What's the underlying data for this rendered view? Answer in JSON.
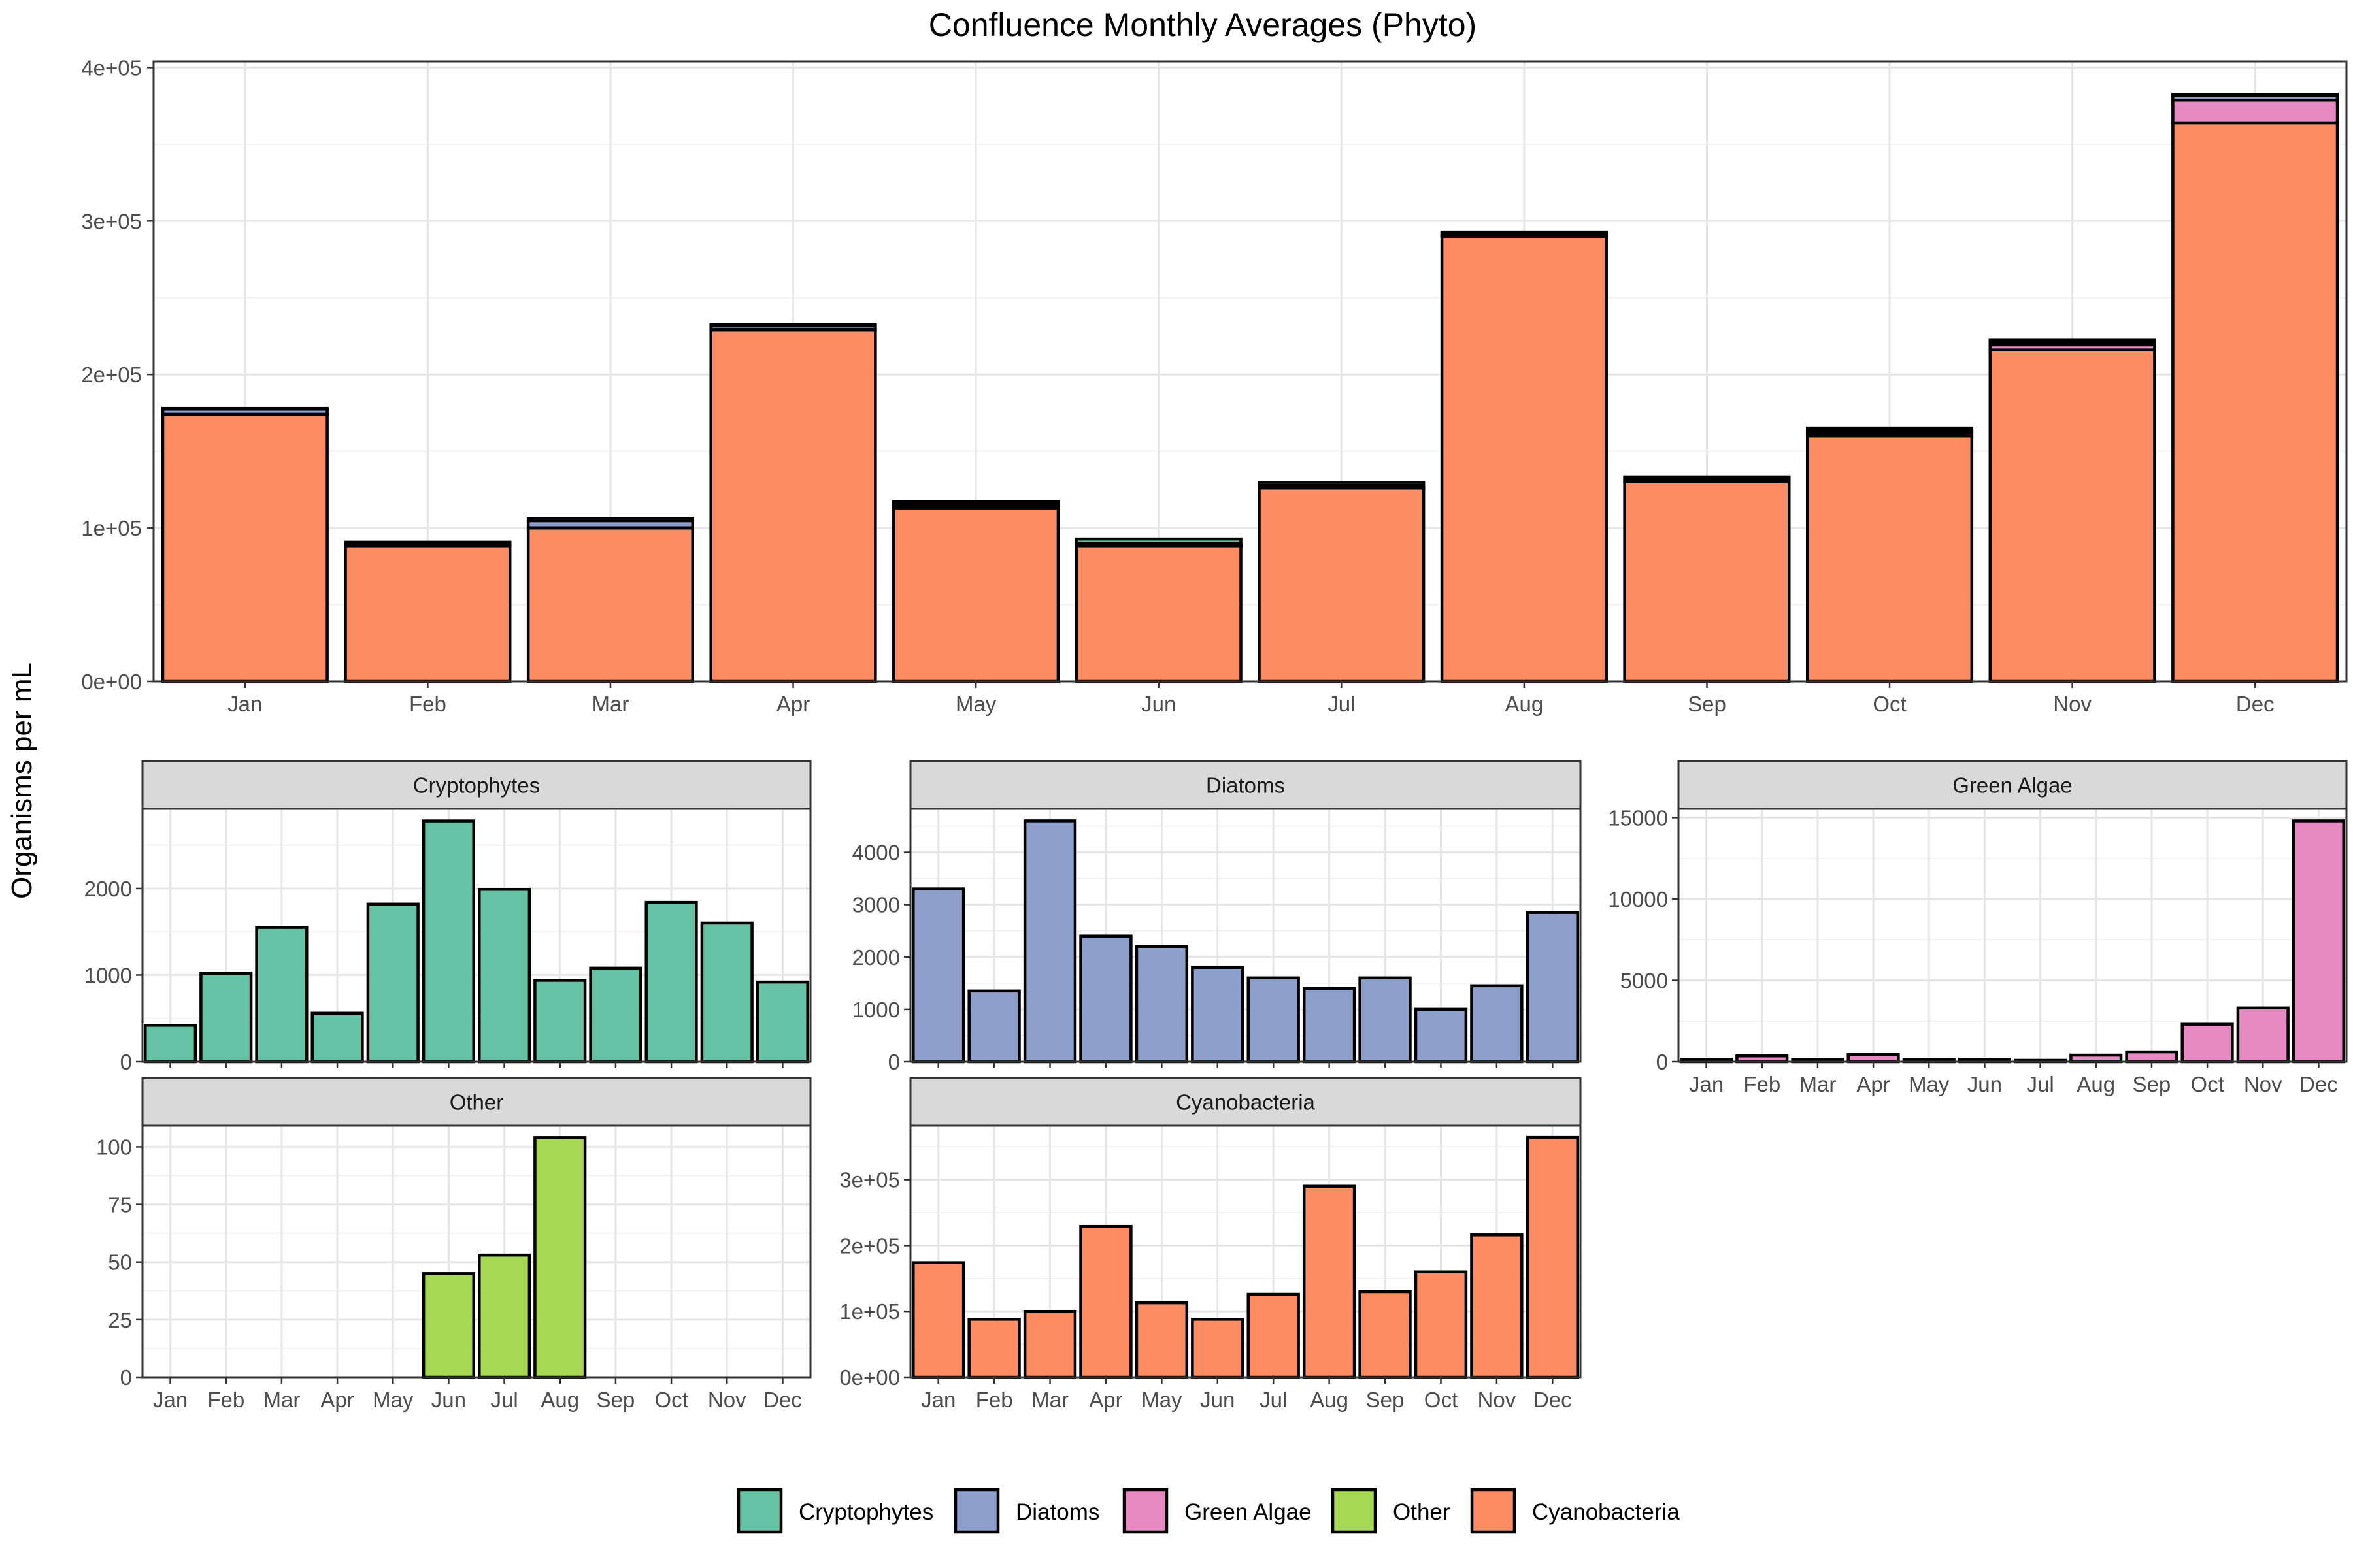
{
  "title": "Confluence Monthly Averages (Phyto)",
  "ylabel": "Organisms per mL",
  "months": [
    "Jan",
    "Feb",
    "Mar",
    "Apr",
    "May",
    "Jun",
    "Jul",
    "Aug",
    "Sep",
    "Oct",
    "Nov",
    "Dec"
  ],
  "colors": {
    "Cryptophytes": "#66c2a5",
    "Diatoms": "#8da0cb",
    "Green Algae": "#e78ac3",
    "Other": "#a6d854",
    "Cyanobacteria": "#fc8d62"
  },
  "legend": {
    "entries": [
      "Cryptophytes",
      "Diatoms",
      "Green Algae",
      "Other",
      "Cyanobacteria"
    ],
    "placement": "bottom"
  },
  "chart_data": [
    {
      "type": "bar",
      "stacked": true,
      "title": "Confluence Monthly Averages (Phyto)",
      "ylabel": "Organisms per mL",
      "categories": [
        "Jan",
        "Feb",
        "Mar",
        "Apr",
        "May",
        "Jun",
        "Jul",
        "Aug",
        "Sep",
        "Oct",
        "Nov",
        "Dec"
      ],
      "ylim": [
        0,
        400000
      ],
      "yticks": [
        0,
        100000,
        200000,
        300000,
        400000
      ],
      "ytick_labels": [
        "0e+00",
        "1e+05",
        "2e+05",
        "3e+05",
        "4e+05"
      ],
      "grid": true,
      "series": [
        {
          "name": "Cyanobacteria",
          "values": [
            174000,
            88000,
            100000,
            229000,
            113000,
            88000,
            126000,
            290000,
            130000,
            160000,
            216000,
            364000
          ]
        },
        {
          "name": "Other",
          "values": [
            0,
            0,
            0,
            0,
            0,
            45,
            53,
            104,
            0,
            0,
            0,
            0
          ]
        },
        {
          "name": "Green Algae",
          "values": [
            150,
            350,
            150,
            450,
            150,
            150,
            80,
            400,
            600,
            2300,
            3300,
            14800
          ]
        },
        {
          "name": "Diatoms",
          "values": [
            3300,
            1350,
            4600,
            2400,
            2200,
            1800,
            1600,
            1400,
            1600,
            1000,
            1450,
            2850
          ]
        },
        {
          "name": "Cryptophytes",
          "values": [
            420,
            1020,
            1550,
            560,
            1820,
            2780,
            1990,
            940,
            1080,
            1840,
            1600,
            920
          ]
        }
      ]
    },
    {
      "type": "bar",
      "panel": "Cryptophytes",
      "categories": [
        "Jan",
        "Feb",
        "Mar",
        "Apr",
        "May",
        "Jun",
        "Jul",
        "Aug",
        "Sep",
        "Oct",
        "Nov",
        "Dec"
      ],
      "values": [
        420,
        1020,
        1550,
        560,
        1820,
        2780,
        1990,
        940,
        1080,
        1840,
        1600,
        920
      ],
      "ylim": [
        0,
        2920
      ],
      "yticks": [
        0,
        1000,
        2000
      ],
      "ytick_labels": [
        "0",
        "1000",
        "2000"
      ]
    },
    {
      "type": "bar",
      "panel": "Diatoms",
      "categories": [
        "Jan",
        "Feb",
        "Mar",
        "Apr",
        "May",
        "Jun",
        "Jul",
        "Aug",
        "Sep",
        "Oct",
        "Nov",
        "Dec"
      ],
      "values": [
        3300,
        1350,
        4600,
        2400,
        2200,
        1800,
        1600,
        1400,
        1600,
        1000,
        1450,
        2850
      ],
      "ylim": [
        0,
        4830
      ],
      "yticks": [
        0,
        1000,
        2000,
        3000,
        4000
      ],
      "ytick_labels": [
        "0",
        "1000",
        "2000",
        "3000",
        "4000"
      ]
    },
    {
      "type": "bar",
      "panel": "Green Algae",
      "categories": [
        "Jan",
        "Feb",
        "Mar",
        "Apr",
        "May",
        "Jun",
        "Jul",
        "Aug",
        "Sep",
        "Oct",
        "Nov",
        "Dec"
      ],
      "values": [
        150,
        350,
        150,
        450,
        150,
        150,
        80,
        400,
        600,
        2300,
        3300,
        14800
      ],
      "ylim": [
        0,
        15540
      ],
      "yticks": [
        0,
        5000,
        10000,
        15000
      ],
      "ytick_labels": [
        "0",
        "5000",
        "10000",
        "15000"
      ]
    },
    {
      "type": "bar",
      "panel": "Other",
      "categories": [
        "Jan",
        "Feb",
        "Mar",
        "Apr",
        "May",
        "Jun",
        "Jul",
        "Aug",
        "Sep",
        "Oct",
        "Nov",
        "Dec"
      ],
      "values": [
        0,
        0,
        0,
        0,
        0,
        45,
        53,
        104,
        0,
        0,
        0,
        0
      ],
      "ylim": [
        0,
        109.2
      ],
      "yticks": [
        0,
        25,
        50,
        75,
        100
      ],
      "ytick_labels": [
        "0",
        "25",
        "50",
        "75",
        "100"
      ]
    },
    {
      "type": "bar",
      "panel": "Cyanobacteria",
      "categories": [
        "Jan",
        "Feb",
        "Mar",
        "Apr",
        "May",
        "Jun",
        "Jul",
        "Aug",
        "Sep",
        "Oct",
        "Nov",
        "Dec"
      ],
      "values": [
        174000,
        88000,
        100000,
        229000,
        113000,
        88000,
        126000,
        290000,
        130000,
        160000,
        216000,
        364000
      ],
      "ylim": [
        0,
        382000
      ],
      "yticks": [
        0,
        100000,
        200000,
        300000
      ],
      "ytick_labels": [
        "0e+00",
        "1e+05",
        "2e+05",
        "3e+05"
      ]
    }
  ]
}
